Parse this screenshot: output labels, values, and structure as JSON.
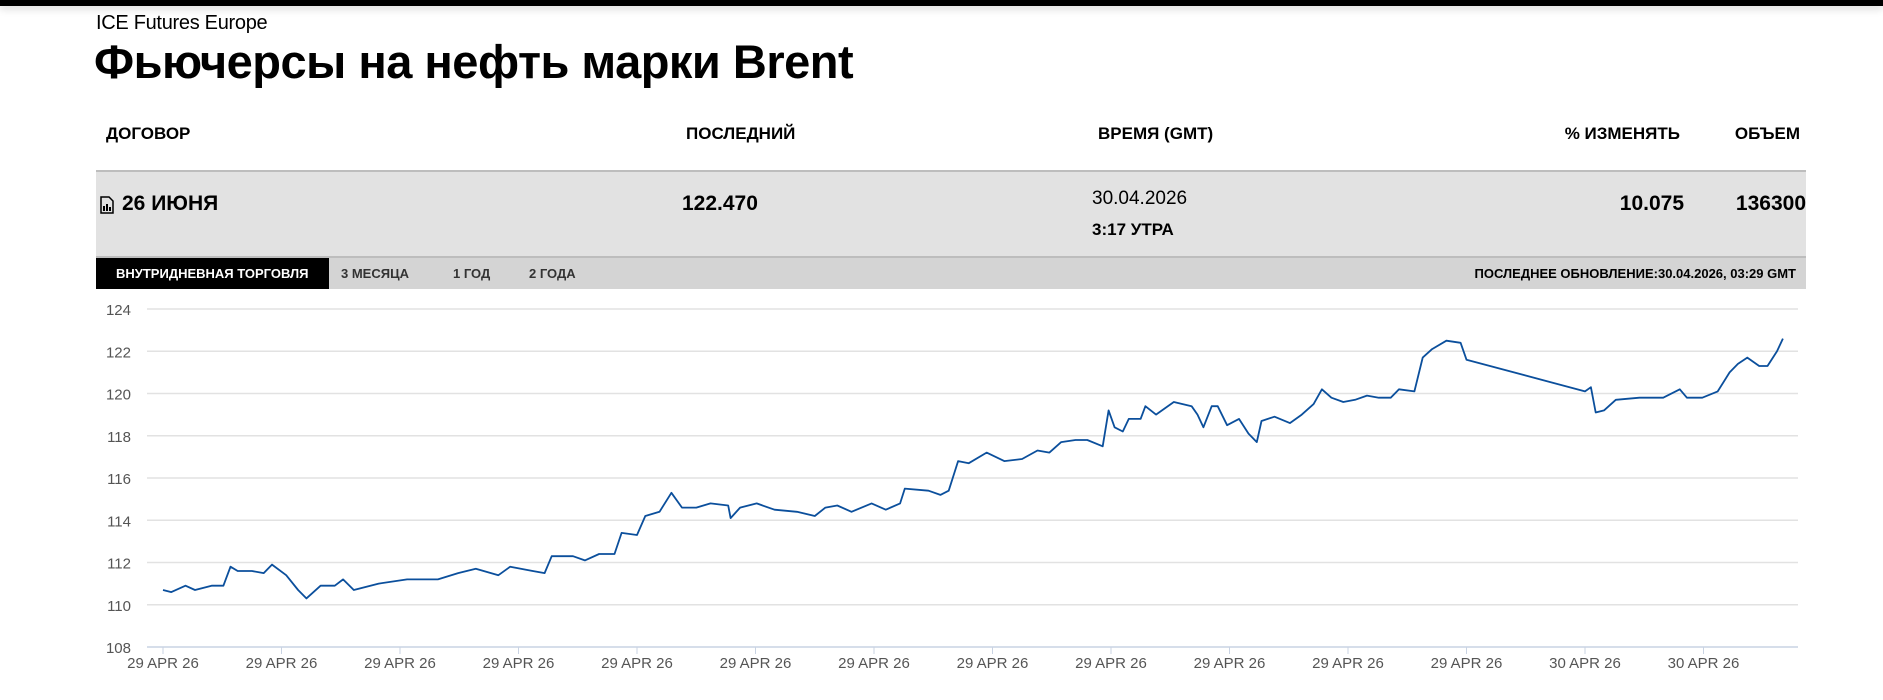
{
  "header": {
    "exchange": "ICE Futures Europe",
    "title": "Фьючерсы на нефть марки Brent"
  },
  "table": {
    "columns": [
      "ДОГОВОР",
      "ПОСЛЕДНИЙ",
      "ВРЕМЯ (GMT)",
      "% ИЗМЕНЯТЬ",
      "ОБЪЕМ"
    ],
    "row": {
      "contract": "26 ИЮНЯ",
      "last": "122.470",
      "date": "30.04.2026",
      "time": "3:17 УТРА",
      "change": "10.075",
      "volume": "136300"
    }
  },
  "tabs": [
    "ВНУТРИДНЕВНАЯ ТОРГОВЛЯ",
    "3 МЕСЯЦА",
    "1 ГОД",
    "2 ГОДА"
  ],
  "last_update": "ПОСЛЕДНЕЕ ОБНОВЛЕНИЕ:30.04.2026, 03:29 GMT",
  "colors": {
    "line": "#0b4f9c",
    "grid": "#e2e2e2"
  },
  "chart_data": {
    "type": "line",
    "title": "",
    "xlabel": "",
    "ylabel": "",
    "ylim": [
      108,
      124
    ],
    "yticks": [
      108,
      110,
      112,
      114,
      116,
      118,
      120,
      122,
      124
    ],
    "xlim": [
      -0.13,
      13.8
    ],
    "xtick_labels": [
      "29 APR 26",
      "29 APR 26",
      "29 APR 26",
      "29 APR 26",
      "29 APR 26",
      "29 APR 26",
      "29 APR 26",
      "29 APR 26",
      "29 APR 26",
      "29 APR 26",
      "29 APR 26",
      "29 APR 26",
      "30 APR 26",
      "30 APR 26"
    ],
    "x": [
      0,
      0.07,
      0.19,
      0.27,
      0.41,
      0.51,
      0.57,
      0.63,
      0.75,
      0.85,
      0.92,
      1.04,
      1.14,
      1.21,
      1.33,
      1.45,
      1.52,
      1.61,
      1.82,
      2.06,
      2.32,
      2.49,
      2.64,
      2.83,
      2.93,
      3.12,
      3.22,
      3.28,
      3.37,
      3.46,
      3.56,
      3.68,
      3.81,
      3.87,
      4.0,
      4.07,
      4.19,
      4.29,
      4.38,
      4.5,
      4.62,
      4.77,
      4.79,
      4.87,
      5.01,
      5.16,
      5.35,
      5.5,
      5.59,
      5.69,
      5.81,
      5.98,
      6.1,
      6.22,
      6.26,
      6.46,
      6.56,
      6.63,
      6.71,
      6.8,
      6.95,
      7.1,
      7.25,
      7.38,
      7.48,
      7.58,
      7.7,
      7.8,
      7.93,
      7.98,
      8.03,
      8.1,
      8.15,
      8.25,
      8.29,
      8.38,
      8.53,
      8.68,
      8.73,
      8.78,
      8.85,
      8.9,
      8.98,
      9.08,
      9.16,
      9.23,
      9.27,
      9.38,
      9.51,
      9.61,
      9.71,
      9.78,
      9.86,
      9.96,
      10.06,
      10.16,
      10.26,
      10.36,
      10.43,
      10.56,
      10.63,
      10.71,
      10.83,
      10.95,
      11.0,
      12.0,
      12.05,
      12.09,
      12.16,
      12.26,
      12.46,
      12.66,
      12.8,
      12.86,
      12.99,
      13.12,
      13.22,
      13.29,
      13.37,
      13.47,
      13.54,
      13.62,
      13.67
    ],
    "series": [
      {
        "name": "Brent",
        "values": [
          110.7,
          110.6,
          110.9,
          110.7,
          110.9,
          110.9,
          111.8,
          111.6,
          111.6,
          111.5,
          111.9,
          111.4,
          110.7,
          110.3,
          110.9,
          110.9,
          111.2,
          110.7,
          111.0,
          111.2,
          111.2,
          111.5,
          111.7,
          111.4,
          111.8,
          111.6,
          111.5,
          112.3,
          112.3,
          112.3,
          112.1,
          112.4,
          112.4,
          113.4,
          113.3,
          114.2,
          114.4,
          115.3,
          114.6,
          114.6,
          114.8,
          114.7,
          114.1,
          114.6,
          114.8,
          114.5,
          114.4,
          114.2,
          114.6,
          114.7,
          114.4,
          114.8,
          114.5,
          114.8,
          115.5,
          115.4,
          115.2,
          115.4,
          116.8,
          116.7,
          117.2,
          116.8,
          116.9,
          117.3,
          117.2,
          117.7,
          117.8,
          117.8,
          117.5,
          119.2,
          118.4,
          118.2,
          118.8,
          118.8,
          119.4,
          119.0,
          119.6,
          119.4,
          119.0,
          118.4,
          119.4,
          119.4,
          118.5,
          118.8,
          118.1,
          117.7,
          118.7,
          118.9,
          118.6,
          119.0,
          119.5,
          120.2,
          119.8,
          119.6,
          119.7,
          119.9,
          119.8,
          119.8,
          120.2,
          120.1,
          121.7,
          122.1,
          122.5,
          122.4,
          121.6,
          120.1,
          120.3,
          119.1,
          119.2,
          119.7,
          119.8,
          119.8,
          120.2,
          119.8,
          119.8,
          120.1,
          121.0,
          121.4,
          121.7,
          121.3,
          121.3,
          122.0,
          122.6
        ]
      }
    ]
  }
}
